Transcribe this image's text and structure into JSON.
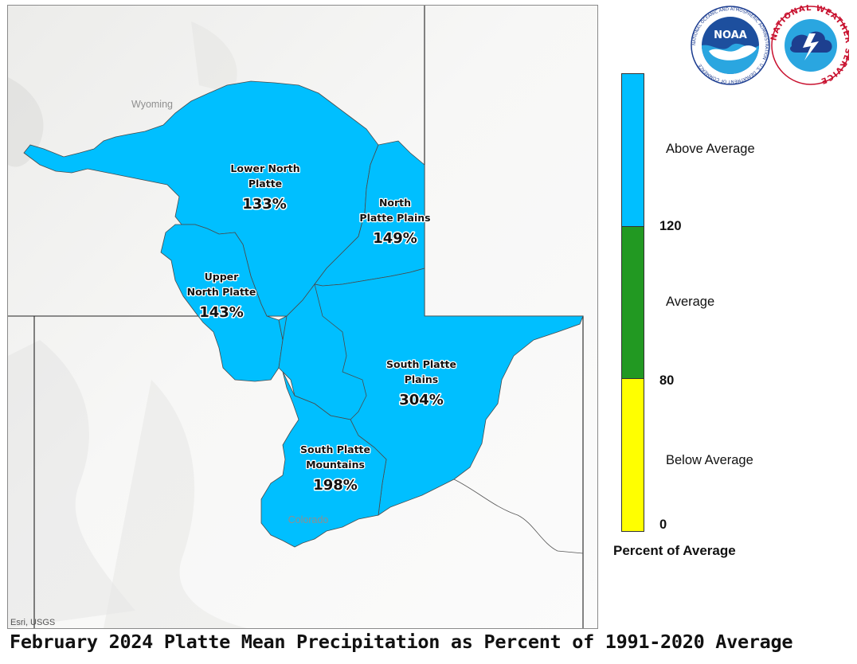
{
  "map": {
    "title": "February 2024 Platte Mean Precipitation as Percent of 1991-2020 Average",
    "attribution": "Esri, USGS",
    "state_labels": [
      "Wyoming",
      "Colorado"
    ],
    "basins": [
      {
        "name_line1": "Lower North",
        "name_line2": "Platte",
        "percent": "133%",
        "category": "Above Average"
      },
      {
        "name_line1": "North",
        "name_line2": "Platte Plains",
        "percent": "149%",
        "category": "Above Average"
      },
      {
        "name_line1": "Upper",
        "name_line2": "North Platte",
        "percent": "143%",
        "category": "Above Average"
      },
      {
        "name_line1": "South Platte",
        "name_line2": "Plains",
        "percent": "304%",
        "category": "Above Average"
      },
      {
        "name_line1": "South Platte",
        "name_line2": "Mountains",
        "percent": "198%",
        "category": "Above Average"
      }
    ]
  },
  "legend": {
    "title": "Percent of Average",
    "classes": [
      {
        "label": "Above Average",
        "color": "#00bfff"
      },
      {
        "label": "Average",
        "color": "#229922"
      },
      {
        "label": "Below Average",
        "color": "#ffff00"
      }
    ],
    "ticks": [
      "120",
      "80",
      "0"
    ]
  },
  "logos": {
    "noaa_text": "NOAA",
    "noaa_ring_text": "NATIONAL OCEANIC AND ATMOSPHERIC ADMINISTRATION · U.S. DEPARTMENT OF COMMERCE",
    "nws_ring_text": "NATIONAL WEATHER SERVICE"
  }
}
